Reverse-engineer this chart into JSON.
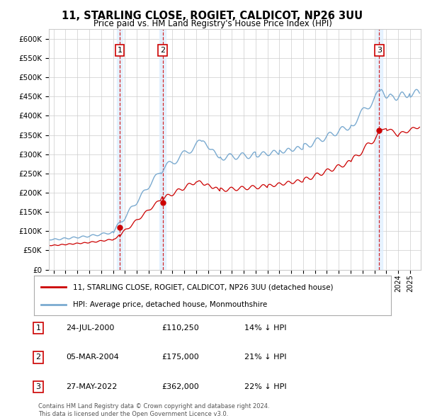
{
  "title": "11, STARLING CLOSE, ROGIET, CALDICOT, NP26 3UU",
  "subtitle": "Price paid vs. HM Land Registry's House Price Index (HPI)",
  "legend_line1": "11, STARLING CLOSE, ROGIET, CALDICOT, NP26 3UU (detached house)",
  "legend_line2": "HPI: Average price, detached house, Monmouthshire",
  "footer1": "Contains HM Land Registry data © Crown copyright and database right 2024.",
  "footer2": "This data is licensed under the Open Government Licence v3.0.",
  "transactions": [
    {
      "num": 1,
      "date": "24-JUL-2000",
      "price": 110250,
      "pct": "14%",
      "x_year": 2000.56
    },
    {
      "num": 2,
      "date": "05-MAR-2004",
      "price": 175000,
      "pct": "21%",
      "x_year": 2004.17
    },
    {
      "num": 3,
      "date": "27-MAY-2022",
      "price": 362000,
      "pct": "22%",
      "x_year": 2022.41
    }
  ],
  "hpi_color": "#7aaad0",
  "price_color": "#cc0000",
  "marker_color": "#cc0000",
  "vline_color": "#cc0000",
  "shade_color": "#ddeeff",
  "grid_color": "#cccccc",
  "background_color": "#ffffff",
  "ylim": [
    0,
    625000
  ],
  "yticks": [
    0,
    50000,
    100000,
    150000,
    200000,
    250000,
    300000,
    350000,
    400000,
    450000,
    500000,
    550000,
    600000
  ],
  "xlim_start": 1994.6,
  "xlim_end": 2025.9
}
